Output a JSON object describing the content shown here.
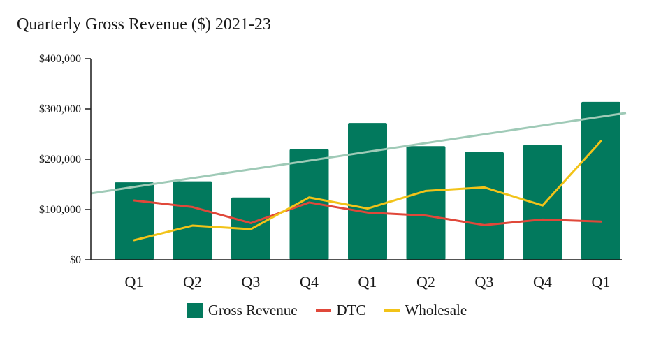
{
  "title": "Quarterly Gross Revenue ($) 2021-23",
  "colors": {
    "gross_revenue": "#02795d",
    "dtc": "#e0483a",
    "wholesale": "#f2c318",
    "trend": "#9fcab7",
    "axis": "#1a1a1a"
  },
  "chart_data": {
    "type": "bar",
    "title": "Quarterly Gross Revenue ($) 2021-23",
    "categories": [
      "Q1",
      "Q2",
      "Q3",
      "Q4",
      "Q1",
      "Q2",
      "Q3",
      "Q4",
      "Q1"
    ],
    "series": [
      {
        "name": "Gross Revenue",
        "type": "bar",
        "values": [
          154000,
          156000,
          124000,
          220000,
          272000,
          226000,
          214000,
          228000,
          314000
        ]
      },
      {
        "name": "DTC",
        "type": "line",
        "values": [
          118000,
          105000,
          73000,
          114000,
          94000,
          88000,
          69000,
          80000,
          76000
        ]
      },
      {
        "name": "Wholesale",
        "type": "line",
        "values": [
          39000,
          68000,
          61000,
          124000,
          102000,
          137000,
          144000,
          108000,
          236000
        ]
      }
    ],
    "trendline": {
      "series": "Gross Revenue",
      "start": 132000,
      "end": 292000
    },
    "ylim": [
      0,
      400000
    ],
    "yticks": [
      0,
      100000,
      200000,
      300000,
      400000
    ],
    "ytick_labels": [
      "$0",
      "$100,000",
      "$200,000",
      "$300,000",
      "$400,000"
    ],
    "xlabel": "",
    "ylabel": "",
    "grid": false,
    "legend": "bottom"
  },
  "legend": {
    "items": [
      {
        "label": "Gross Revenue",
        "kind": "box",
        "color": "#02795d"
      },
      {
        "label": "DTC",
        "kind": "line",
        "color": "#e0483a"
      },
      {
        "label": "Wholesale",
        "kind": "line",
        "color": "#f2c318"
      }
    ]
  }
}
